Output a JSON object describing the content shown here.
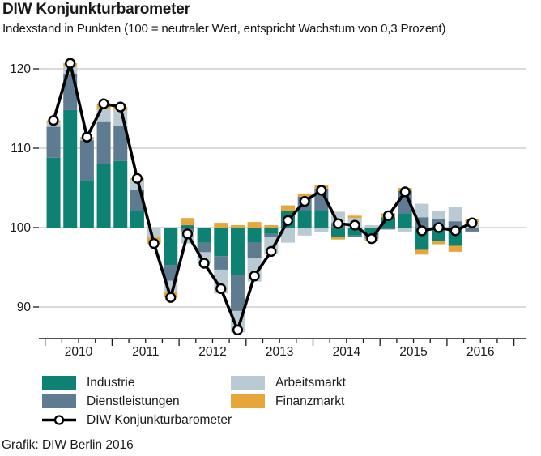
{
  "header": {
    "title": "DIW Konjunkturbarometer",
    "subtitle": "Indexstand in Punkten (100 = neutraler Wert, entspricht Wachstum von 0,3 Prozent)"
  },
  "footer": {
    "source": "Grafik: DIW Berlin 2016"
  },
  "colors": {
    "industrie": "#0d8272",
    "dienstleistungen": "#5e7b92",
    "arbeitsmarkt": "#b9cad3",
    "finanzmarkt": "#e7a639",
    "line": "#000000",
    "marker_fill": "#ffffff",
    "grid": "#c4c4c4",
    "axis": "#1a1a1a",
    "text": "#1a1a1a"
  },
  "chart_data": {
    "type": "stacked_bar_with_line",
    "title": "DIW Konjunkturbarometer",
    "subtitle": "Indexstand in Punkten (100 = neutraler Wert, entspricht Wachstum von 0,3 Prozent)",
    "xlabel": "",
    "ylabel": "Indexstand in Punkten",
    "grid": true,
    "legend_position": "bottom",
    "baseline": 100,
    "yticks": [
      90,
      100,
      110,
      120
    ],
    "ylim": [
      86,
      121.5
    ],
    "x_year_labels": [
      "2010",
      "2011",
      "2012",
      "2013",
      "2014",
      "2015",
      "2016"
    ],
    "quarters": [
      "2010 Q1",
      "2010 Q2",
      "2010 Q3",
      "2010 Q4",
      "2011 Q1",
      "2011 Q2",
      "2011 Q3",
      "2011 Q4",
      "2012 Q1",
      "2012 Q2",
      "2012 Q3",
      "2012 Q4",
      "2013 Q1",
      "2013 Q2",
      "2013 Q3",
      "2013 Q4",
      "2014 Q1",
      "2014 Q2",
      "2014 Q3",
      "2014 Q4",
      "2015 Q1",
      "2015 Q2",
      "2015 Q3",
      "2015 Q4",
      "2016 Q1",
      "2016 Q2"
    ],
    "series_values_are": "Beitrag in Punkten relativ zur 100er-Linie",
    "series": [
      {
        "name": "Industrie",
        "color": "#0d8272",
        "values": [
          8.8,
          14.8,
          6.0,
          8.0,
          8.4,
          2.1,
          0.0,
          -4.7,
          0.3,
          -1.9,
          -3.6,
          -6.0,
          -1.9,
          -0.8,
          2.1,
          2.2,
          2.2,
          -1.2,
          -1.0,
          -1.0,
          1.3,
          1.8,
          -2.8,
          -1.75,
          -2.3,
          0.0
        ]
      },
      {
        "name": "Dienstleistungen",
        "color": "#5e7b92",
        "values": [
          3.9,
          4.6,
          5.0,
          5.3,
          4.4,
          2.7,
          0.0,
          -2.0,
          -0.5,
          -1.2,
          -1.7,
          -4.5,
          -1.9,
          -0.4,
          0.0,
          1.7,
          2.7,
          0.6,
          -0.2,
          -0.4,
          -0.2,
          2.8,
          1.3,
          1.1,
          0.8,
          -0.5
        ]
      },
      {
        "name": "Arbeitsmarkt",
        "color": "#b9cad3",
        "values": [
          0.5,
          1.0,
          0.2,
          1.6,
          2.0,
          1.2,
          -1.2,
          -1.4,
          -1.5,
          -1.4,
          -3.0,
          -2.7,
          -3.0,
          -2.1,
          -1.9,
          -1.0,
          -0.6,
          1.4,
          1.2,
          0.3,
          -0.1,
          -0.5,
          1.7,
          1.0,
          1.85,
          0.7
        ]
      },
      {
        "name": "Finanzmarkt",
        "color": "#e7a639",
        "values": [
          0.3,
          0.3,
          0.2,
          0.7,
          0.4,
          0.2,
          -0.8,
          -0.7,
          0.9,
          0.0,
          0.6,
          0.3,
          0.7,
          0.3,
          0.7,
          0.4,
          0.4,
          -0.3,
          0.3,
          -0.3,
          0.5,
          0.4,
          -0.6,
          -0.35,
          -0.75,
          0.4
        ]
      }
    ],
    "line_series": {
      "name": "DIW Konjunkturbarometer",
      "color": "#000000",
      "values": [
        113.5,
        120.7,
        111.4,
        115.6,
        115.2,
        106.2,
        98.0,
        91.2,
        99.2,
        95.5,
        92.3,
        87.1,
        93.9,
        97.0,
        100.9,
        103.3,
        104.7,
        100.5,
        100.3,
        98.6,
        101.5,
        104.5,
        99.6,
        100.0,
        99.6,
        100.6
      ]
    }
  }
}
